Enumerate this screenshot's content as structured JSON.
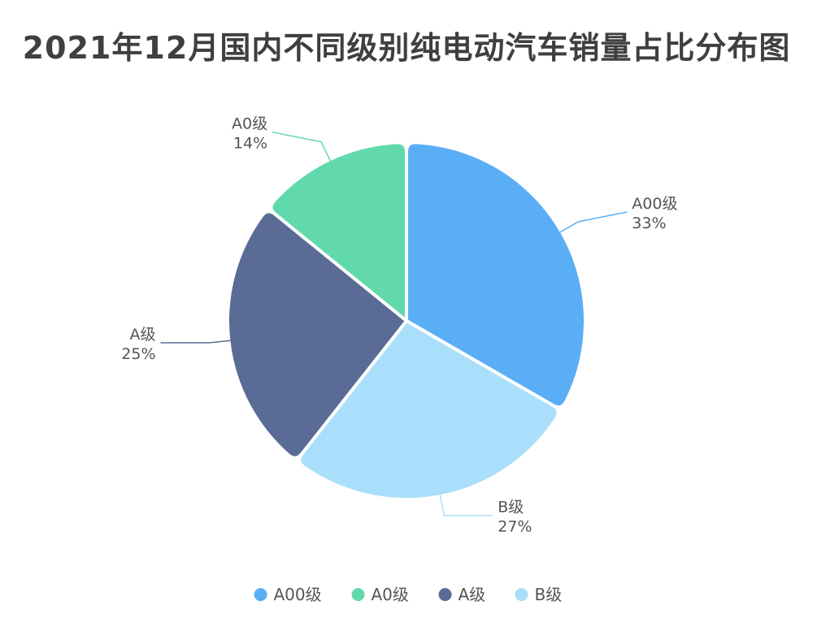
{
  "chart_data": {
    "type": "pie",
    "title": "2021年12月国内不同级别纯电动汽车销量占比分布图",
    "slices": [
      {
        "label": "A00级",
        "value": 33,
        "value_label": "33%",
        "color": "#5aaef5"
      },
      {
        "label": "B级",
        "value": 27,
        "value_label": "27%",
        "color": "#aadffb"
      },
      {
        "label": "A级",
        "value": 25,
        "value_label": "25%",
        "color": "#5a6c95"
      },
      {
        "label": "A0级",
        "value": 14,
        "value_label": "14%",
        "color": "#62d9ad"
      }
    ],
    "legend": {
      "placement": "bottom",
      "order": [
        "A00级",
        "A0级",
        "A级",
        "B级"
      ]
    }
  }
}
